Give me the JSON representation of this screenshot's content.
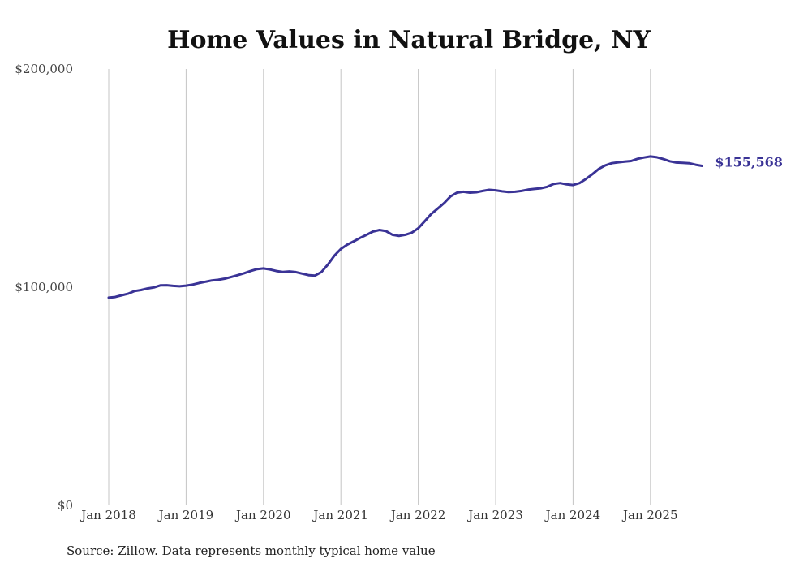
{
  "chart_data": {
    "type": "line",
    "title": "Home Values in Natural Bridge, NY",
    "xlabel": "",
    "ylabel": "",
    "ylim": [
      0,
      200000
    ],
    "y_ticks": [
      {
        "value": 0,
        "label": "$0"
      },
      {
        "value": 100000,
        "label": "$100,000"
      },
      {
        "value": 200000,
        "label": "$200,000"
      }
    ],
    "x_ticks": [
      {
        "index": 0,
        "label": "Jan 2018"
      },
      {
        "index": 12,
        "label": "Jan 2019"
      },
      {
        "index": 24,
        "label": "Jan 2020"
      },
      {
        "index": 36,
        "label": "Jan 2021"
      },
      {
        "index": 48,
        "label": "Jan 2022"
      },
      {
        "index": 60,
        "label": "Jan 2023"
      },
      {
        "index": 72,
        "label": "Jan 2024"
      },
      {
        "index": 84,
        "label": "Jan 2025"
      }
    ],
    "grid": "vertical",
    "series": [
      {
        "name": "Typical home value",
        "color": "#3a3396",
        "start": "Jan 2018",
        "frequency": "monthly",
        "values": [
          95200,
          95500,
          96300,
          97000,
          98200,
          98700,
          99400,
          99900,
          100800,
          100900,
          100600,
          100400,
          100700,
          101200,
          101900,
          102500,
          103100,
          103400,
          103900,
          104700,
          105500,
          106400,
          107400,
          108300,
          108600,
          108100,
          107400,
          107000,
          107200,
          106900,
          106200,
          105500,
          105300,
          107000,
          110400,
          114500,
          117500,
          119500,
          121000,
          122600,
          124000,
          125500,
          126200,
          125700,
          124000,
          123500,
          124000,
          125000,
          127000,
          130200,
          133500,
          136000,
          138500,
          141600,
          143300,
          143700,
          143300,
          143500,
          144100,
          144600,
          144400,
          143900,
          143600,
          143700,
          144100,
          144700,
          145000,
          145300,
          146000,
          147300,
          147700,
          147100,
          146800,
          147700,
          149600,
          151800,
          154200,
          155800,
          156800,
          157200,
          157500,
          157800,
          158800,
          159400,
          159900,
          159500,
          158700,
          157700,
          157100,
          157000,
          156800,
          156100,
          155568
        ],
        "end_label": "$155,568"
      }
    ]
  },
  "footer": {
    "source": "Source: Zillow. Data represents monthly typical home value"
  }
}
